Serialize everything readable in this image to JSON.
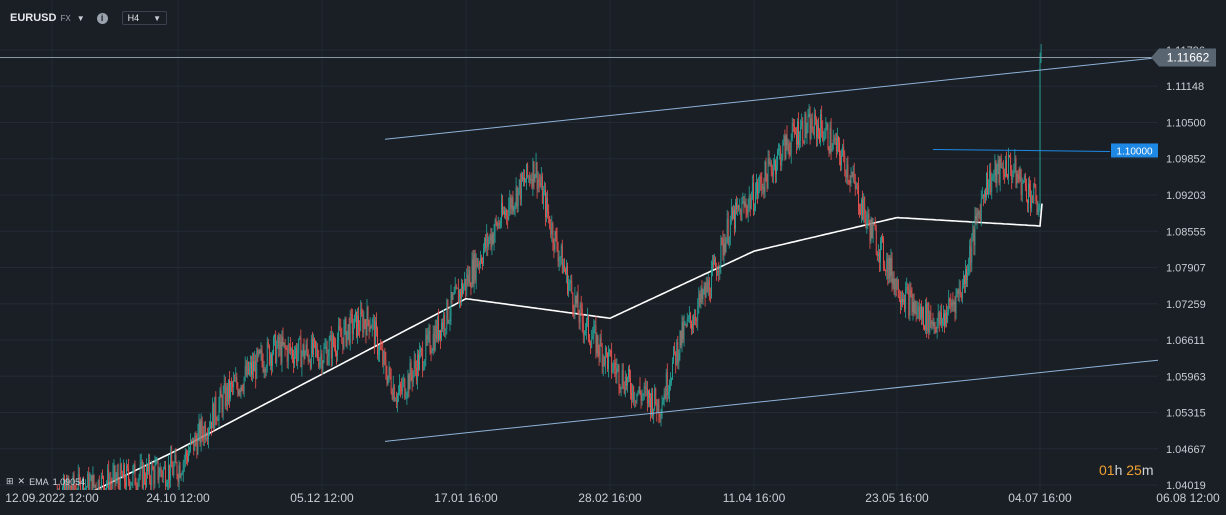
{
  "toolbar": {
    "symbol": "EURUSD",
    "symbol_type": "FX",
    "info_glyph": "i",
    "timeframe": "H4"
  },
  "indicator": {
    "name": "EMA",
    "value": "1.09054"
  },
  "countdown": {
    "h": "01",
    "h_unit": "h",
    "m": "25",
    "m_unit": "m"
  },
  "colors": {
    "up": "#26a69a",
    "down": "#ef5350",
    "ema": "#ffffff",
    "trend": "#8fb3d9",
    "level": "#1e88e5"
  },
  "chart_data": {
    "type": "candlestick",
    "symbol": "EURUSD",
    "timeframe": "H4",
    "y_ticks": [
      "1.11796",
      "1.11148",
      "1.10500",
      "1.09852",
      "1.09203",
      "1.08555",
      "1.07907",
      "1.07259",
      "1.06611",
      "1.05963",
      "1.05315",
      "1.04667",
      "1.04019"
    ],
    "x_ticks": [
      "12.09.2022 12:00",
      "24.10 12:00",
      "05.12 12:00",
      "17.01 16:00",
      "28.02 16:00",
      "11.04 16:00",
      "23.05 16:00",
      "04.07 16:00",
      "06.08 12:00"
    ],
    "current_price": "1.11662",
    "horizontal_level": "1.10000",
    "ema_value": 1.09054,
    "price_path": [
      [
        "12.09.2022 12:00",
        1.038
      ],
      [
        "21.09",
        1.0395
      ],
      [
        "03.10",
        1.041
      ],
      [
        "24.10 12:00",
        1.0432
      ],
      [
        "07.11",
        1.056
      ],
      [
        "21.11",
        1.0645
      ],
      [
        "05.12 12:00",
        1.0635
      ],
      [
        "14.12",
        1.0685
      ],
      [
        "25.12",
        1.07
      ],
      [
        "02.01",
        1.061
      ],
      [
        "06.01",
        1.056
      ],
      [
        "17.01 16:00",
        1.0765
      ],
      [
        "27.01",
        1.086
      ],
      [
        "02.02",
        1.092
      ],
      [
        "08.02",
        1.097
      ],
      [
        "13.02",
        1.084
      ],
      [
        "20.02",
        1.07
      ],
      [
        "28.02 16:00",
        1.062
      ],
      [
        "07.03",
        1.057
      ],
      [
        "14.03",
        1.0545
      ],
      [
        "21.03",
        1.066
      ],
      [
        "28.03",
        1.076
      ],
      [
        "04.04",
        1.087
      ],
      [
        "11.04 16:00",
        1.092
      ],
      [
        "18.04",
        1.099
      ],
      [
        "25.04",
        1.104
      ],
      [
        "02.05",
        1.104
      ],
      [
        "09.05",
        1.098
      ],
      [
        "16.05",
        1.087
      ],
      [
        "23.05 16:00",
        1.076
      ],
      [
        "30.05",
        1.071
      ],
      [
        "06.06",
        1.069
      ],
      [
        "13.06",
        1.076
      ],
      [
        "20.06",
        1.094
      ],
      [
        "27.06",
        1.0975
      ],
      [
        "04.07 16:00",
        1.09
      ],
      [
        "09.07",
        1.095
      ],
      [
        "14.07",
        1.104
      ],
      [
        "17.07",
        1.1166
      ]
    ],
    "ema_path": [
      [
        "12.09.2022 12:00",
        1.0355
      ],
      [
        "24.10 12:00",
        1.0465
      ],
      [
        "05.12 12:00",
        1.06
      ],
      [
        "17.01 16:00",
        1.0735
      ],
      [
        "28.02 16:00",
        1.07
      ],
      [
        "11.04 16:00",
        1.082
      ],
      [
        "23.05 16:00",
        1.088
      ],
      [
        "04.07 16:00",
        1.0865
      ],
      [
        "17.07",
        1.0905
      ]
    ],
    "channel": {
      "upper": [
        [
          "02.01",
          1.102
        ],
        [
          "06.08 12:00",
          1.1166
        ]
      ],
      "lower": [
        [
          "02.01",
          1.048
        ],
        [
          "06.08 12:00",
          1.0625
        ]
      ]
    }
  }
}
